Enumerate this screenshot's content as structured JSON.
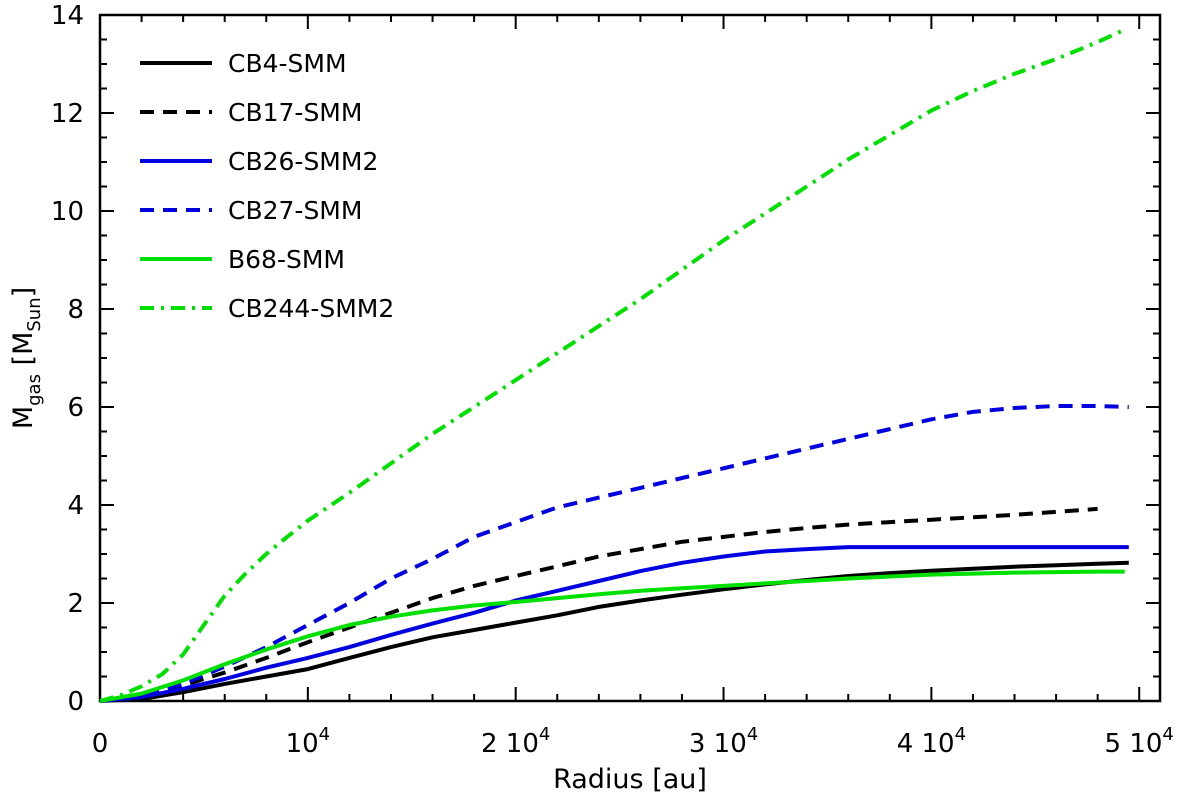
{
  "chart_data": {
    "type": "line",
    "xlabel": "Radius [au]",
    "ylabel": "M_gas [M_Sun]",
    "ylabel_parts": {
      "main": "M",
      "sub": "gas",
      "open": " [M",
      "sub2": "Sun",
      "close": "]"
    },
    "xlim": [
      0,
      51000
    ],
    "ylim": [
      0,
      14
    ],
    "xticks": [
      {
        "value": 0,
        "label": "0",
        "exp": ""
      },
      {
        "value": 10000,
        "label": "10",
        "exp": "4"
      },
      {
        "value": 20000,
        "label": "2 10",
        "exp": "4"
      },
      {
        "value": 30000,
        "label": "3 10",
        "exp": "4"
      },
      {
        "value": 40000,
        "label": "4 10",
        "exp": "4"
      },
      {
        "value": 50000,
        "label": "5 10",
        "exp": "4"
      }
    ],
    "yticks": [
      {
        "value": 0,
        "label": "0"
      },
      {
        "value": 2,
        "label": "2"
      },
      {
        "value": 4,
        "label": "4"
      },
      {
        "value": 6,
        "label": "6"
      },
      {
        "value": 8,
        "label": "8"
      },
      {
        "value": 10,
        "label": "10"
      },
      {
        "value": 12,
        "label": "12"
      },
      {
        "value": 14,
        "label": "14"
      }
    ],
    "legend_position": "top-left",
    "series": [
      {
        "name": "CB4-SMM",
        "color": "#000000",
        "style": "solid",
        "x": [
          0,
          2000,
          4000,
          6000,
          8000,
          10000,
          12000,
          14000,
          16000,
          18000,
          20000,
          22000,
          24000,
          26000,
          28000,
          30000,
          32000,
          34000,
          36000,
          38000,
          40000,
          42000,
          44000,
          46000,
          48000,
          49500
        ],
        "y": [
          0,
          0.04,
          0.18,
          0.35,
          0.5,
          0.65,
          0.88,
          1.1,
          1.3,
          1.45,
          1.6,
          1.75,
          1.92,
          2.05,
          2.17,
          2.28,
          2.38,
          2.47,
          2.55,
          2.61,
          2.66,
          2.7,
          2.74,
          2.77,
          2.8,
          2.82
        ]
      },
      {
        "name": "CB17-SMM",
        "color": "#000000",
        "style": "dashed",
        "x": [
          0,
          2000,
          4000,
          6000,
          8000,
          10000,
          12000,
          14000,
          16000,
          18000,
          20000,
          22000,
          24000,
          26000,
          28000,
          30000,
          32000,
          34000,
          36000,
          38000,
          40000,
          42000,
          44000,
          46000,
          48000
        ],
        "y": [
          0,
          0.12,
          0.32,
          0.58,
          0.88,
          1.2,
          1.5,
          1.8,
          2.1,
          2.35,
          2.55,
          2.75,
          2.95,
          3.1,
          3.25,
          3.35,
          3.45,
          3.53,
          3.6,
          3.65,
          3.7,
          3.75,
          3.8,
          3.86,
          3.92
        ]
      },
      {
        "name": "CB26-SMM2",
        "color": "#0000e0",
        "style": "solid",
        "x": [
          0,
          2000,
          4000,
          6000,
          8000,
          10000,
          12000,
          14000,
          16000,
          18000,
          20000,
          22000,
          24000,
          26000,
          28000,
          30000,
          32000,
          34000,
          36000,
          38000,
          40000,
          42000,
          44000,
          46000,
          48000,
          49500
        ],
        "y": [
          0,
          0.08,
          0.25,
          0.45,
          0.68,
          0.88,
          1.1,
          1.35,
          1.58,
          1.8,
          2.05,
          2.25,
          2.45,
          2.65,
          2.82,
          2.95,
          3.05,
          3.1,
          3.14,
          3.14,
          3.14,
          3.14,
          3.14,
          3.14,
          3.14,
          3.14
        ]
      },
      {
        "name": "CB27-SMM",
        "color": "#0000e0",
        "style": "dashed",
        "x": [
          0,
          2000,
          4000,
          6000,
          8000,
          10000,
          12000,
          14000,
          16000,
          18000,
          20000,
          22000,
          24000,
          26000,
          28000,
          30000,
          32000,
          34000,
          36000,
          38000,
          40000,
          42000,
          44000,
          46000,
          48000,
          49500
        ],
        "y": [
          0,
          0.12,
          0.35,
          0.7,
          1.1,
          1.55,
          2.0,
          2.5,
          2.9,
          3.35,
          3.65,
          3.95,
          4.15,
          4.35,
          4.55,
          4.75,
          4.95,
          5.15,
          5.35,
          5.55,
          5.75,
          5.9,
          5.98,
          6.02,
          6.02,
          6.0
        ]
      },
      {
        "name": "B68-SMM",
        "color": "#00e000",
        "style": "solid",
        "x": [
          0,
          2000,
          4000,
          6000,
          8000,
          10000,
          12000,
          14000,
          16000,
          18000,
          20000,
          22000,
          24000,
          26000,
          28000,
          30000,
          32000,
          34000,
          36000,
          38000,
          40000,
          42000,
          44000,
          46000,
          48000,
          49300
        ],
        "y": [
          0,
          0.15,
          0.42,
          0.75,
          1.05,
          1.32,
          1.55,
          1.72,
          1.85,
          1.95,
          2.02,
          2.1,
          2.18,
          2.25,
          2.3,
          2.35,
          2.4,
          2.45,
          2.5,
          2.54,
          2.58,
          2.6,
          2.62,
          2.63,
          2.64,
          2.64
        ]
      },
      {
        "name": "CB244-SMM2",
        "color": "#00e000",
        "style": "dashdot",
        "x": [
          0,
          1000,
          2000,
          3000,
          4000,
          5000,
          6000,
          7000,
          8000,
          9000,
          10000,
          12000,
          14000,
          16000,
          18000,
          20000,
          22000,
          24000,
          26000,
          28000,
          30000,
          32000,
          34000,
          36000,
          38000,
          40000,
          42000,
          44000,
          46000,
          48000,
          49300
        ],
        "y": [
          0,
          0.12,
          0.3,
          0.55,
          0.95,
          1.55,
          2.15,
          2.6,
          3.0,
          3.35,
          3.68,
          4.25,
          4.85,
          5.45,
          6.0,
          6.55,
          7.1,
          7.65,
          8.2,
          8.8,
          9.4,
          9.95,
          10.5,
          11.05,
          11.55,
          12.05,
          12.45,
          12.8,
          13.1,
          13.45,
          13.7
        ]
      }
    ]
  }
}
